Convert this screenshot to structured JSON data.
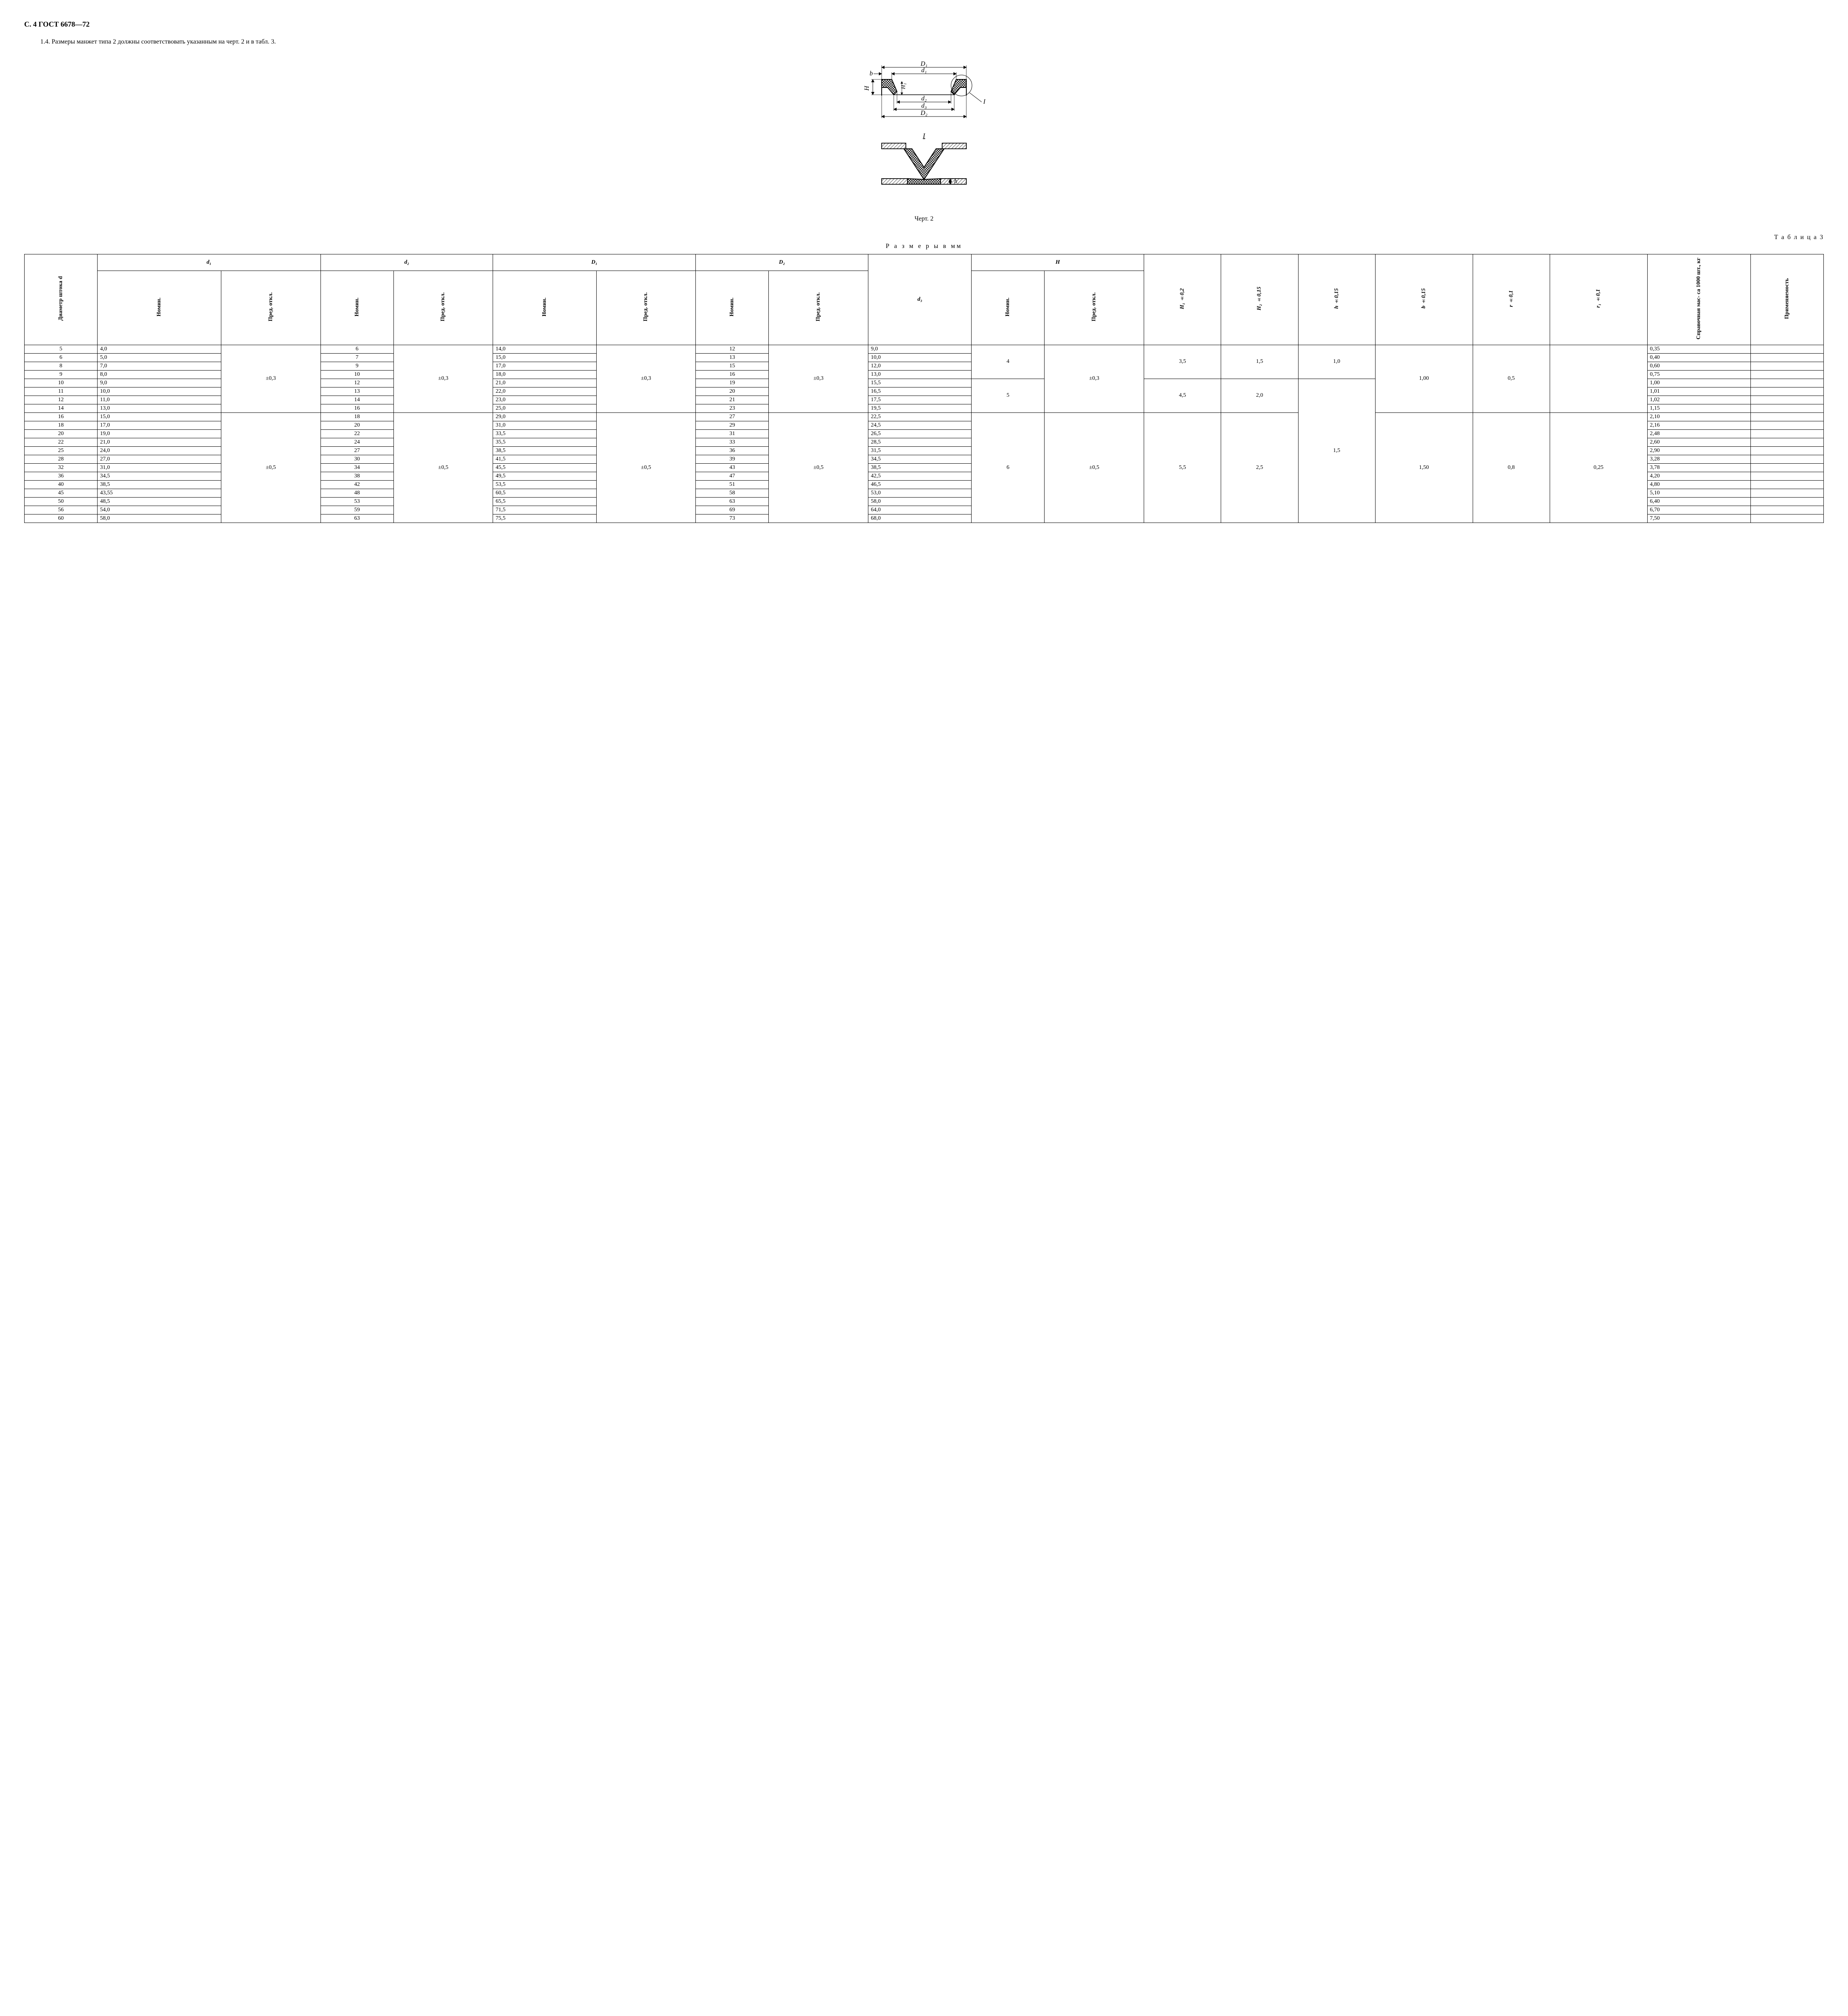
{
  "header": "С. 4 ГОСТ 6678—72",
  "para": "1.4. Размеры манжет типа 2 должны соответствовать указанным на черт. 2 и в табл. 3.",
  "figure": {
    "caption": "Черт. 2",
    "labels": {
      "D1": "D₁",
      "d1": "d₁",
      "b": "b",
      "H": "H",
      "H1": "H₁",
      "d2": "d₂",
      "d3": "d₃",
      "D2": "D₂",
      "I": "I",
      "Isec": "I",
      "h": "h"
    },
    "style": {
      "stroke": "#000000",
      "hatch": "#000000",
      "bg": "#ffffff",
      "line_thin": 1.2,
      "line_thick": 2.2,
      "font_main": 16,
      "font_sub": 12
    }
  },
  "table": {
    "label": "Т а б л и ц а 3",
    "caption": "Р а з м е р ы  в  мм",
    "headers": {
      "diam": "Диаметр штока d",
      "d1": "d₁",
      "d2": "d₂",
      "D1": "D₁",
      "D2": "D₂",
      "d3": "d₃",
      "H": "H",
      "H1": "H₁ ±0,2",
      "H2": "H₂ ±0,15",
      "h": "h ±0,15",
      "b": "b ±0,15",
      "r": "r ±0,1",
      "r1": "r₁ ±0,1",
      "mass": "Справочная мас-\nса 1000 шт., кг",
      "apply": "Применяемость",
      "nom": "Номин.",
      "tol": "Пред. откл."
    },
    "rows": [
      {
        "d": "5",
        "d1": "4,0",
        "d2": "6",
        "D1": "14,0",
        "D2": "12",
        "d3": "9,0",
        "mass": "0,35"
      },
      {
        "d": "6",
        "d1": "5,0",
        "d2": "7",
        "D1": "15,0",
        "D2": "13",
        "d3": "10,0",
        "mass": "0,40"
      },
      {
        "d": "8",
        "d1": "7,0",
        "d2": "9",
        "D1": "17,0",
        "D2": "15",
        "d3": "12,0",
        "mass": "0,60"
      },
      {
        "d": "9",
        "d1": "8,0",
        "d2": "10",
        "D1": "18,0",
        "D2": "16",
        "d3": "13,0",
        "mass": "0,75"
      },
      {
        "d": "10",
        "d1": "9,0",
        "d2": "12",
        "D1": "21,0",
        "D2": "19",
        "d3": "15,5",
        "mass": "1,00"
      },
      {
        "d": "11",
        "d1": "10,0",
        "d2": "13",
        "D1": "22,0",
        "D2": "20",
        "d3": "16,5",
        "mass": "1,01"
      },
      {
        "d": "12",
        "d1": "11,0",
        "d2": "14",
        "D1": "23,0",
        "D2": "21",
        "d3": "17,5",
        "mass": "1,02"
      },
      {
        "d": "14",
        "d1": "13,0",
        "d2": "16",
        "D1": "25,0",
        "D2": "23",
        "d3": "19,5",
        "mass": "1,15"
      },
      {
        "d": "16",
        "d1": "15,0",
        "d2": "18",
        "D1": "29,0",
        "D2": "27",
        "d3": "22,5",
        "mass": "2,10"
      },
      {
        "d": "18",
        "d1": "17,0",
        "d2": "20",
        "D1": "31,0",
        "D2": "29",
        "d3": "24,5",
        "mass": "2,16"
      },
      {
        "d": "20",
        "d1": "19,0",
        "d2": "22",
        "D1": "33,5",
        "D2": "31",
        "d3": "26,5",
        "mass": "2,48"
      },
      {
        "d": "22",
        "d1": "21,0",
        "d2": "24",
        "D1": "35,5",
        "D2": "33",
        "d3": "28,5",
        "mass": "2,60"
      },
      {
        "d": "25",
        "d1": "24,0",
        "d2": "27",
        "D1": "38,5",
        "D2": "36",
        "d3": "31,5",
        "mass": "2,90"
      },
      {
        "d": "28",
        "d1": "27,0",
        "d2": "30",
        "D1": "41,5",
        "D2": "39",
        "d3": "34,5",
        "mass": "3,28"
      },
      {
        "d": "32",
        "d1": "31,0",
        "d2": "34",
        "D1": "45,5",
        "D2": "43",
        "d3": "38,5",
        "mass": "3,78"
      },
      {
        "d": "36",
        "d1": "34,5",
        "d2": "38",
        "D1": "49,5",
        "D2": "47",
        "d3": "42,5",
        "mass": "4,20"
      },
      {
        "d": "40",
        "d1": "38,5",
        "d2": "42",
        "D1": "53,5",
        "D2": "51",
        "d3": "46,5",
        "mass": "4,80"
      },
      {
        "d": "45",
        "d1": "43,55",
        "d2": "48",
        "D1": "60,5",
        "D2": "58",
        "d3": "53,0",
        "mass": "5,10"
      },
      {
        "d": "50",
        "d1": "48,5",
        "d2": "53",
        "D1": "65,5",
        "D2": "63",
        "d3": "58,0",
        "mass": "6,40"
      },
      {
        "d": "56",
        "d1": "54,0",
        "d2": "59",
        "D1": "71,5",
        "D2": "69",
        "d3": "64,0",
        "mass": "6,70"
      },
      {
        "d": "60",
        "d1": "58,0",
        "d2": "63",
        "D1": "75,5",
        "D2": "73",
        "d3": "68,0",
        "mass": "7,50"
      }
    ],
    "groups": {
      "tol03": "±0,3",
      "tol05": "±0,5",
      "Hnom": [
        "4",
        "5",
        "6"
      ],
      "Htol": [
        "±0,3",
        "±0,5"
      ],
      "H1": [
        "3,5",
        "4,5",
        "5,5"
      ],
      "H2": [
        "1,5",
        "2,0",
        "2,5"
      ],
      "h": [
        "1,0",
        "1,5"
      ],
      "b": [
        "1,00",
        "1,50"
      ],
      "r": [
        "0,5",
        "0,8"
      ],
      "r1": [
        "0,25"
      ]
    }
  }
}
